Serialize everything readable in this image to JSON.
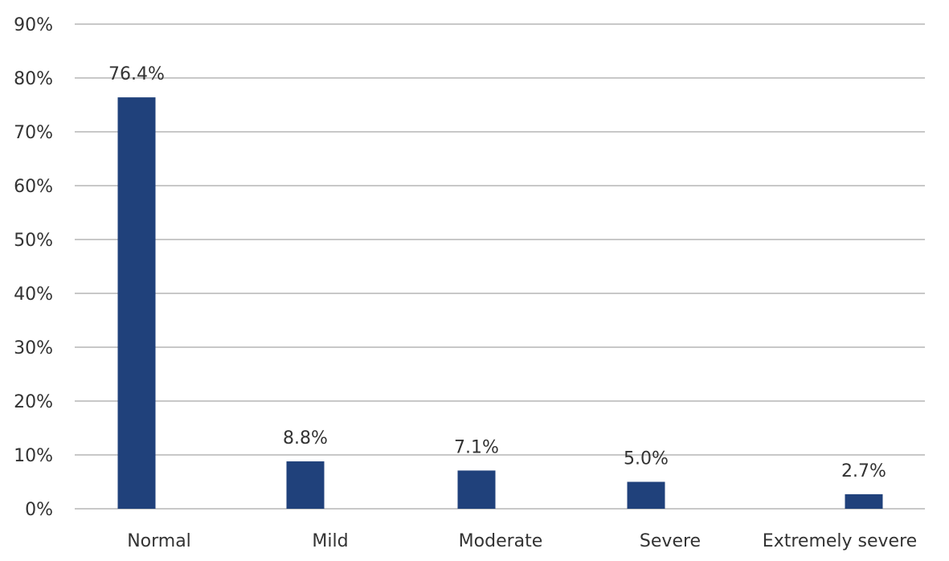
{
  "chart_data": {
    "type": "bar",
    "categories": [
      "Normal",
      "Mild",
      "Moderate",
      "Severe",
      "Extremely severe"
    ],
    "values": [
      76.4,
      8.8,
      7.1,
      5.0,
      2.7
    ],
    "data_labels": [
      "76.4%",
      "8.8%",
      "7.1%",
      "5.0%",
      "2.7%"
    ],
    "title": "",
    "xlabel": "",
    "ylabel": "",
    "ylim": [
      0,
      90
    ],
    "y_ticks": [
      0,
      10,
      20,
      30,
      40,
      50,
      60,
      70,
      80,
      90
    ],
    "y_tick_labels": [
      "0%",
      "10%",
      "20%",
      "30%",
      "40%",
      "50%",
      "60%",
      "70%",
      "80%",
      "90%"
    ],
    "grid": true,
    "legend": "none",
    "bar_color": "#20417b",
    "grid_color": "#c8c8c8"
  }
}
